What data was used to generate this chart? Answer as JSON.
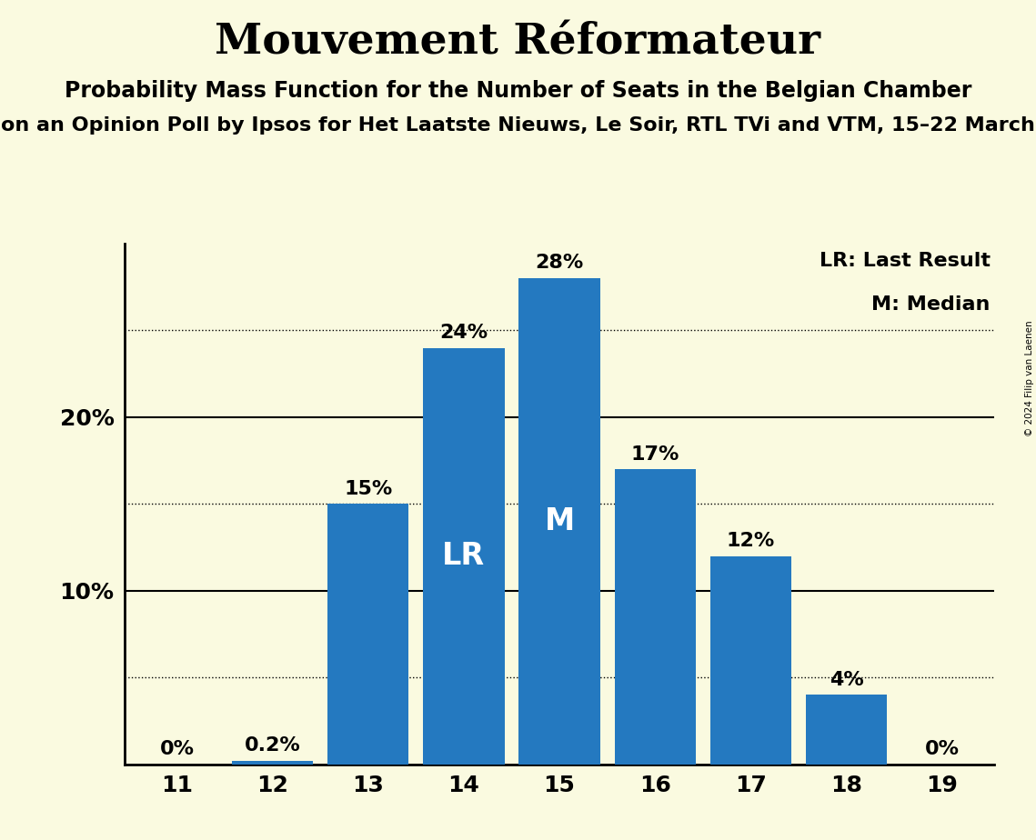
{
  "title": "Mouvement Réformateur",
  "subtitle1": "Probability Mass Function for the Number of Seats in the Belgian Chamber",
  "subtitle2": "on an Opinion Poll by Ipsos for Het Laatste Nieuws, Le Soir, RTL TVi and VTM, 15–22 March",
  "copyright": "© 2024 Filip van Laenen",
  "categories": [
    11,
    12,
    13,
    14,
    15,
    16,
    17,
    18,
    19
  ],
  "values": [
    0.0,
    0.2,
    15.0,
    24.0,
    28.0,
    17.0,
    12.0,
    4.0,
    0.0
  ],
  "bar_color": "#2479C0",
  "background_color": "#FAFAE0",
  "bar_labels": [
    "0%",
    "0.2%",
    "15%",
    "24%",
    "28%",
    "17%",
    "12%",
    "4%",
    "0%"
  ],
  "LR_bar": 14,
  "M_bar": 15,
  "legend_LR": "LR: Last Result",
  "legend_M": "M: Median",
  "ylim": [
    0,
    30
  ],
  "solid_lines": [
    10,
    20
  ],
  "dotted_lines": [
    5,
    15,
    25
  ]
}
